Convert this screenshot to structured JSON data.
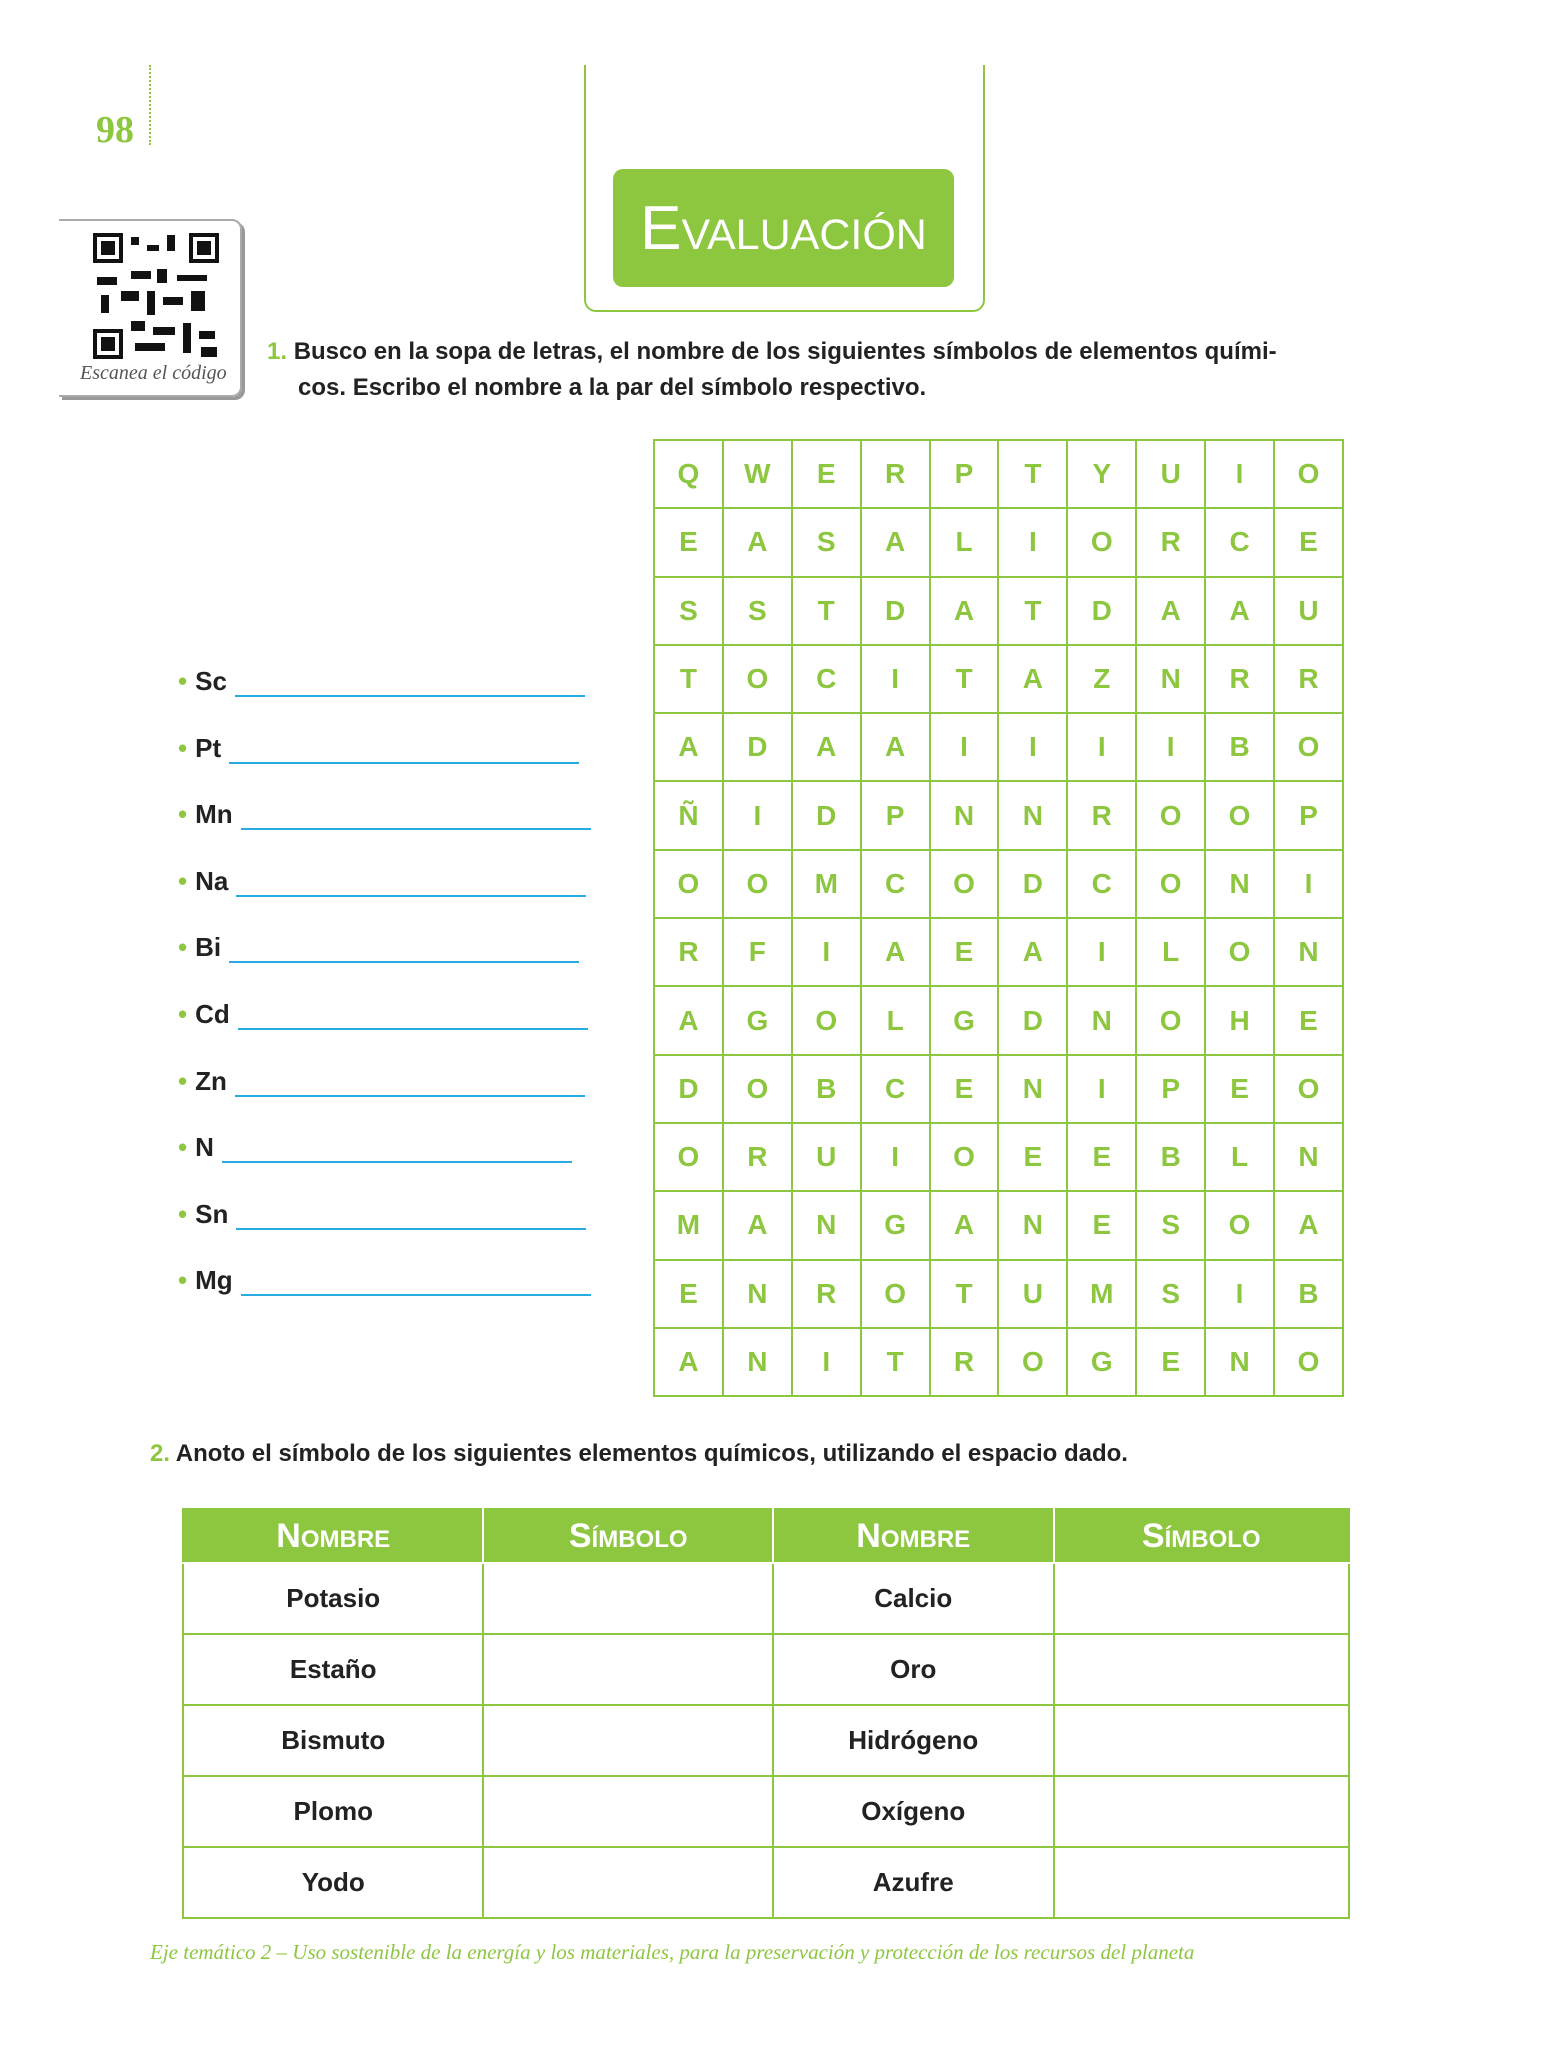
{
  "page_number": "98",
  "qr_caption": "Escanea el código",
  "title": "Evaluación",
  "question1": {
    "number": "1.",
    "text": "Busco en la sopa de letras, el nombre de los siguientes símbolos de elementos quími-",
    "text2": "cos. Escribo el nombre a la par del símbolo respectivo."
  },
  "symbols": [
    "Sc",
    "Pt",
    "Mn",
    "Na",
    "Bi",
    "Cd",
    "Zn",
    "N",
    "Sn",
    "Mg"
  ],
  "grid": {
    "rows": [
      [
        "Q",
        "W",
        "E",
        "R",
        "P",
        "T",
        "Y",
        "U",
        "I",
        "O"
      ],
      [
        "E",
        "A",
        "S",
        "A",
        "L",
        "I",
        "O",
        "R",
        "C",
        "E"
      ],
      [
        "S",
        "S",
        "T",
        "D",
        "A",
        "T",
        "D",
        "A",
        "A",
        "U"
      ],
      [
        "T",
        "O",
        "C",
        "I",
        "T",
        "A",
        "Z",
        "N",
        "R",
        "R"
      ],
      [
        "A",
        "D",
        "A",
        "A",
        "I",
        "I",
        "I",
        "I",
        "B",
        "O"
      ],
      [
        "Ñ",
        "I",
        "D",
        "P",
        "N",
        "N",
        "R",
        "O",
        "O",
        "P"
      ],
      [
        "O",
        "O",
        "M",
        "C",
        "O",
        "D",
        "C",
        "O",
        "N",
        "I"
      ],
      [
        "R",
        "F",
        "I",
        "A",
        "E",
        "A",
        "I",
        "L",
        "O",
        "N"
      ],
      [
        "A",
        "G",
        "O",
        "L",
        "G",
        "D",
        "N",
        "O",
        "H",
        "E"
      ],
      [
        "D",
        "O",
        "B",
        "C",
        "E",
        "N",
        "I",
        "P",
        "E",
        "O"
      ],
      [
        "O",
        "R",
        "U",
        "I",
        "O",
        "E",
        "E",
        "B",
        "L",
        "N"
      ],
      [
        "M",
        "A",
        "N",
        "G",
        "A",
        "N",
        "E",
        "S",
        "O",
        "A"
      ],
      [
        "E",
        "N",
        "R",
        "O",
        "T",
        "U",
        "M",
        "S",
        "I",
        "B"
      ],
      [
        "A",
        "N",
        "I",
        "T",
        "R",
        "O",
        "G",
        "E",
        "N",
        "O"
      ]
    ]
  },
  "question2": {
    "number": "2.",
    "text": "Anoto el símbolo de los siguientes elementos químicos, utilizando el espacio dado."
  },
  "table": {
    "header": [
      "Nombre",
      "Símbolo",
      "Nombre",
      "Símbolo"
    ],
    "rows": [
      [
        "Potasio",
        "Calcio"
      ],
      [
        "Estaño",
        "Oro"
      ],
      [
        "Bismuto",
        "Hidrógeno"
      ],
      [
        "Plomo",
        "Oxígeno"
      ],
      [
        "Yodo",
        "Azufre"
      ]
    ]
  },
  "footer": "Eje temático 2 – Uso sostenible de la energía y los materiales, para la preservación y protección de los recursos del planeta"
}
